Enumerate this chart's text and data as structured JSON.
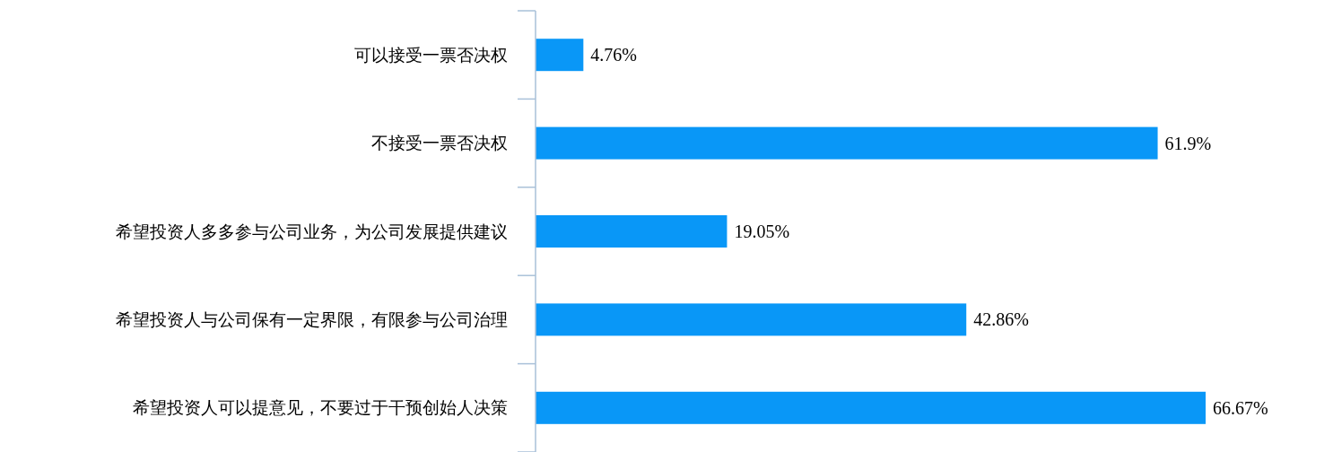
{
  "chart_data": {
    "type": "bar",
    "orientation": "horizontal",
    "categories": [
      "可以接受一票否决权",
      "不接受一票否决权",
      "希望投资人多多参与公司业务，为公司发展提供建议",
      "希望投资人与公司保有一定界限，有限参与公司治理",
      "希望投资人可以提意见，不要过于干预创始人决策"
    ],
    "values": [
      4.76,
      61.9,
      19.05,
      42.86,
      66.67
    ],
    "value_labels": [
      "4.76%",
      "61.9%",
      "19.05%",
      "42.86%",
      "66.67%"
    ],
    "color": "#0997f7"
  }
}
